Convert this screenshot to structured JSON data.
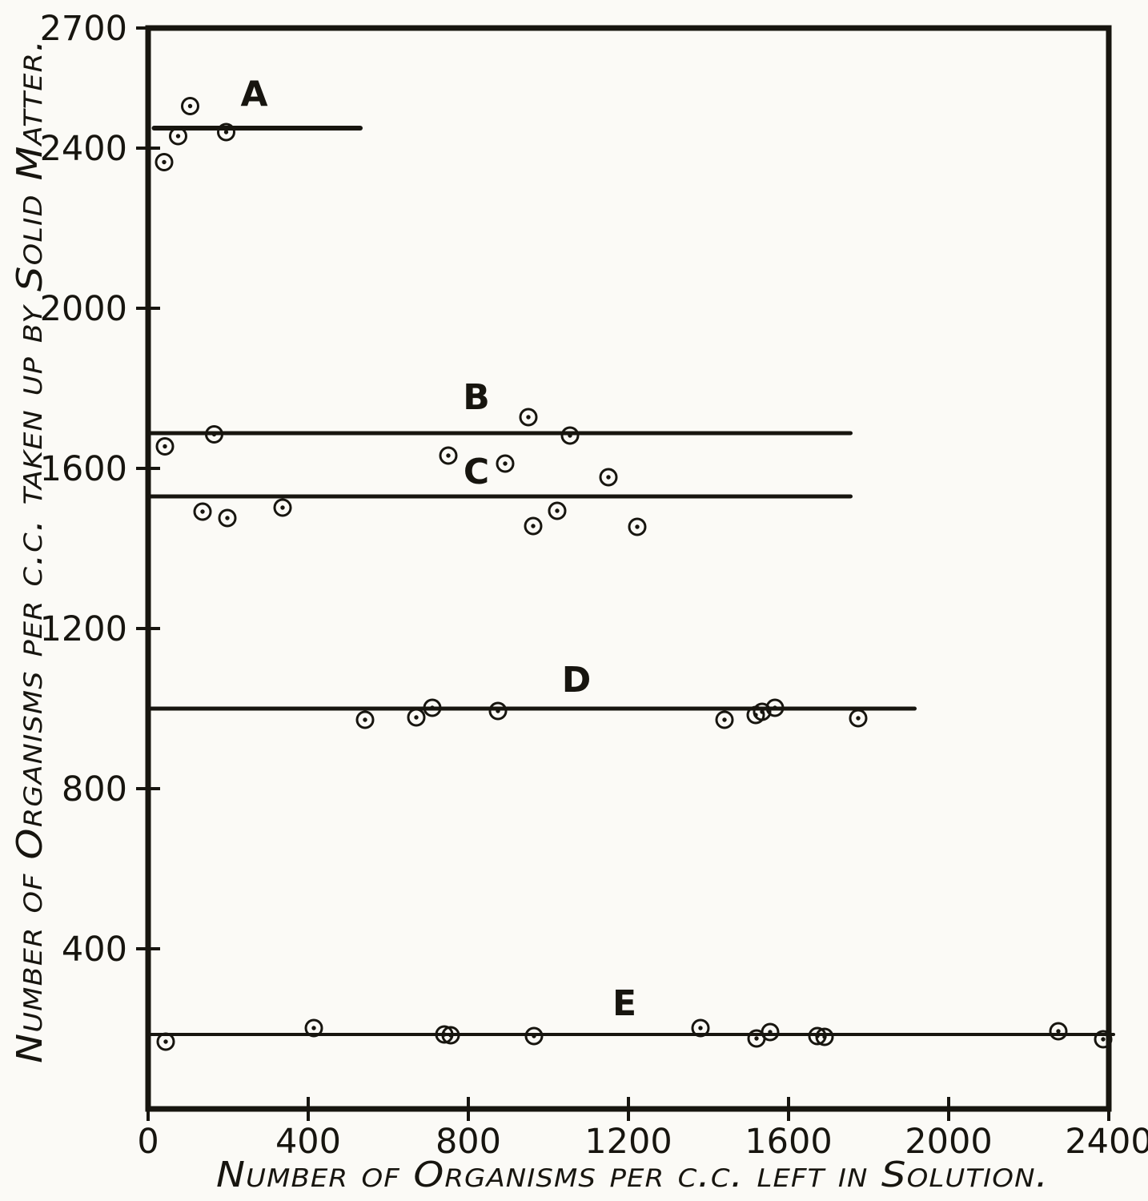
{
  "figure": {
    "paper_color": "#fbfaf6",
    "ink_color": "#17150f"
  },
  "chart_data": {
    "type": "scatter",
    "title": "",
    "xlabel": "Number of Organisms per c.c. left in Solution.",
    "ylabel": "Number of Organisms per c.c. taken up by Solid Matter.",
    "xlim": [
      0,
      2400
    ],
    "ylim": [
      0,
      2700
    ],
    "x_ticks": [
      0,
      400,
      800,
      1200,
      1600,
      2000,
      2400
    ],
    "y_ticks": [
      400,
      800,
      1200,
      1600,
      2000,
      2400,
      2700
    ],
    "grid": false,
    "legend": "inline-letter-labels",
    "marker": "circled-dot",
    "series": [
      {
        "name": "A",
        "fit_line": {
          "y": 2450,
          "x_start": 15,
          "x_end": 530,
          "width": 6
        },
        "label_pos": [
          265,
          2505
        ],
        "points": [
          [
            40,
            2365
          ],
          [
            75,
            2430
          ],
          [
            105,
            2505
          ],
          [
            195,
            2440
          ]
        ]
      },
      {
        "name": "B",
        "fit_line": {
          "y": 1688,
          "x_start": 0,
          "x_end": 1755,
          "width": 5
        },
        "label_pos": [
          820,
          1748
        ],
        "points": [
          [
            42,
            1655
          ],
          [
            165,
            1685
          ],
          [
            750,
            1632
          ],
          [
            892,
            1612
          ],
          [
            950,
            1728
          ],
          [
            1054,
            1682
          ],
          [
            1150,
            1578
          ]
        ]
      },
      {
        "name": "C",
        "fit_line": {
          "y": 1530,
          "x_start": 0,
          "x_end": 1755,
          "width": 5
        },
        "label_pos": [
          820,
          1562
        ],
        "points": [
          [
            136,
            1492
          ],
          [
            198,
            1476
          ],
          [
            336,
            1502
          ],
          [
            962,
            1456
          ],
          [
            1022,
            1494
          ],
          [
            1222,
            1454
          ]
        ]
      },
      {
        "name": "D",
        "fit_line": {
          "y": 1000,
          "x_start": 0,
          "x_end": 1915,
          "width": 5
        },
        "label_pos": [
          1070,
          1042
        ],
        "points": [
          [
            542,
            972
          ],
          [
            670,
            978
          ],
          [
            710,
            1002
          ],
          [
            874,
            994
          ],
          [
            1440,
            972
          ],
          [
            1518,
            984
          ],
          [
            1534,
            992
          ],
          [
            1566,
            1002
          ],
          [
            1774,
            976
          ]
        ]
      },
      {
        "name": "E",
        "fit_line": {
          "y": 186,
          "x_start": 0,
          "x_end": 2412,
          "width": 4
        },
        "label_pos": [
          1190,
          234
        ],
        "points": [
          [
            44,
            168
          ],
          [
            414,
            202
          ],
          [
            740,
            186
          ],
          [
            756,
            184
          ],
          [
            964,
            182
          ],
          [
            1380,
            202
          ],
          [
            1520,
            176
          ],
          [
            1554,
            192
          ],
          [
            1672,
            182
          ],
          [
            1690,
            180
          ],
          [
            2274,
            194
          ],
          [
            2386,
            174
          ]
        ]
      }
    ]
  }
}
